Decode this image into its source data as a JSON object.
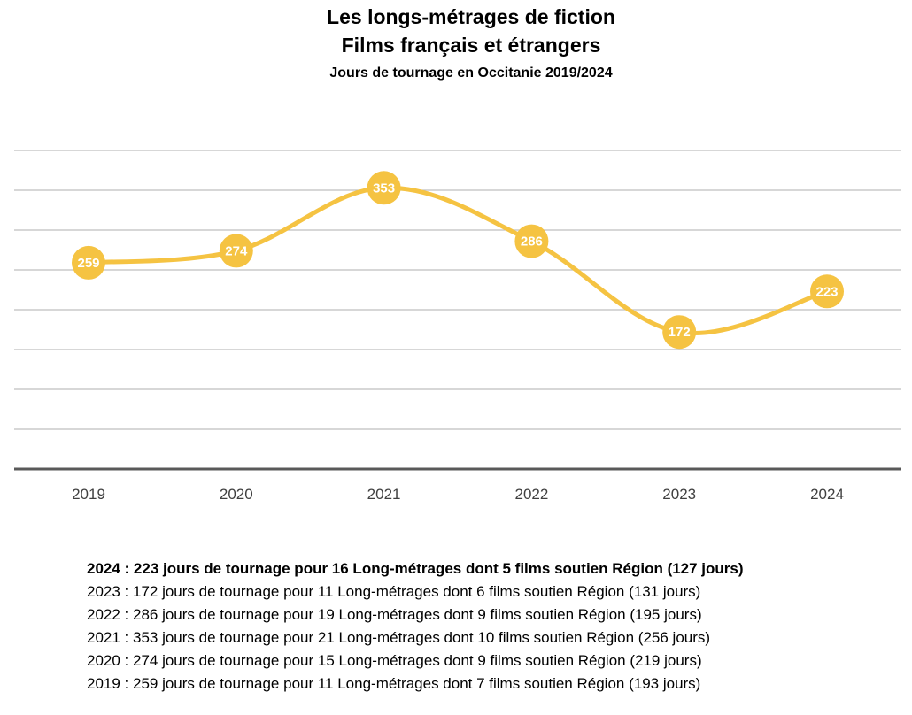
{
  "header": {
    "title": "Les longs-métrages de fiction",
    "subtitle": "Films français et étrangers",
    "caption": "Jours de tournage en Occitanie 2019/2024"
  },
  "chart_data": {
    "type": "line",
    "categories": [
      "2019",
      "2020",
      "2021",
      "2022",
      "2023",
      "2024"
    ],
    "values": [
      259,
      274,
      353,
      286,
      172,
      223
    ],
    "data_labels": true,
    "ylim": [
      0,
      400
    ],
    "grid": true,
    "smooth": true,
    "color": "#F5C342"
  },
  "notes": [
    {
      "text": "2024 : 223 jours de tournage pour 16 Long-métrages dont 5 films soutien Région (127 jours)",
      "bold": true
    },
    {
      "text": "2023 : 172 jours de tournage pour 11 Long-métrages dont 6 films soutien Région (131 jours)",
      "bold": false
    },
    {
      "text": "2022 : 286 jours de tournage pour 19 Long-métrages dont 9 films soutien Région (195 jours)",
      "bold": false
    },
    {
      "text": "2021 : 353 jours de tournage pour 21 Long-métrages dont 10 films soutien Région (256 jours)",
      "bold": false
    },
    {
      "text": "2020 : 274 jours de tournage pour 15 Long-métrages dont 9 films soutien Région (219 jours)",
      "bold": false
    },
    {
      "text": "2019 : 259 jours de tournage pour 11 Long-métrages dont 7 films soutien Région (193 jours)",
      "bold": false
    }
  ]
}
